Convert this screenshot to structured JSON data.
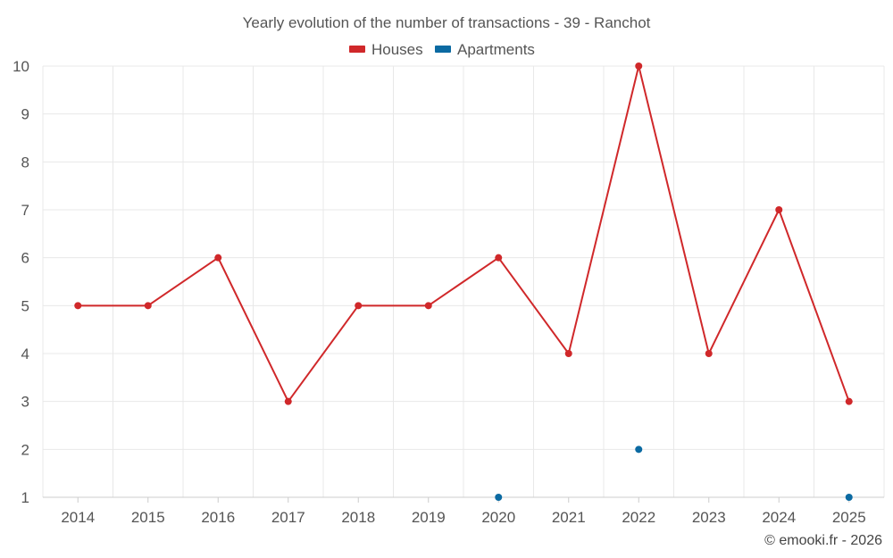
{
  "chart_data": {
    "type": "line",
    "title": "Yearly evolution of the number of transactions - 39 - Ranchot",
    "categories": [
      "2014",
      "2015",
      "2016",
      "2017",
      "2018",
      "2019",
      "2020",
      "2021",
      "2022",
      "2023",
      "2024",
      "2025"
    ],
    "ylim": [
      1,
      10
    ],
    "yticks": [
      1,
      2,
      3,
      4,
      5,
      6,
      7,
      8,
      9,
      10
    ],
    "grid": true,
    "legend_position": "top-center",
    "series": [
      {
        "name": "Houses",
        "color": "#d0282a",
        "values": [
          5,
          5,
          6,
          3,
          5,
          5,
          6,
          4,
          10,
          4,
          7,
          3
        ]
      },
      {
        "name": "Apartments",
        "color": "#0b6aa2",
        "values": [
          null,
          null,
          null,
          null,
          null,
          null,
          1,
          null,
          2,
          null,
          null,
          1
        ]
      }
    ]
  },
  "credit": "© emooki.fr - 2026"
}
